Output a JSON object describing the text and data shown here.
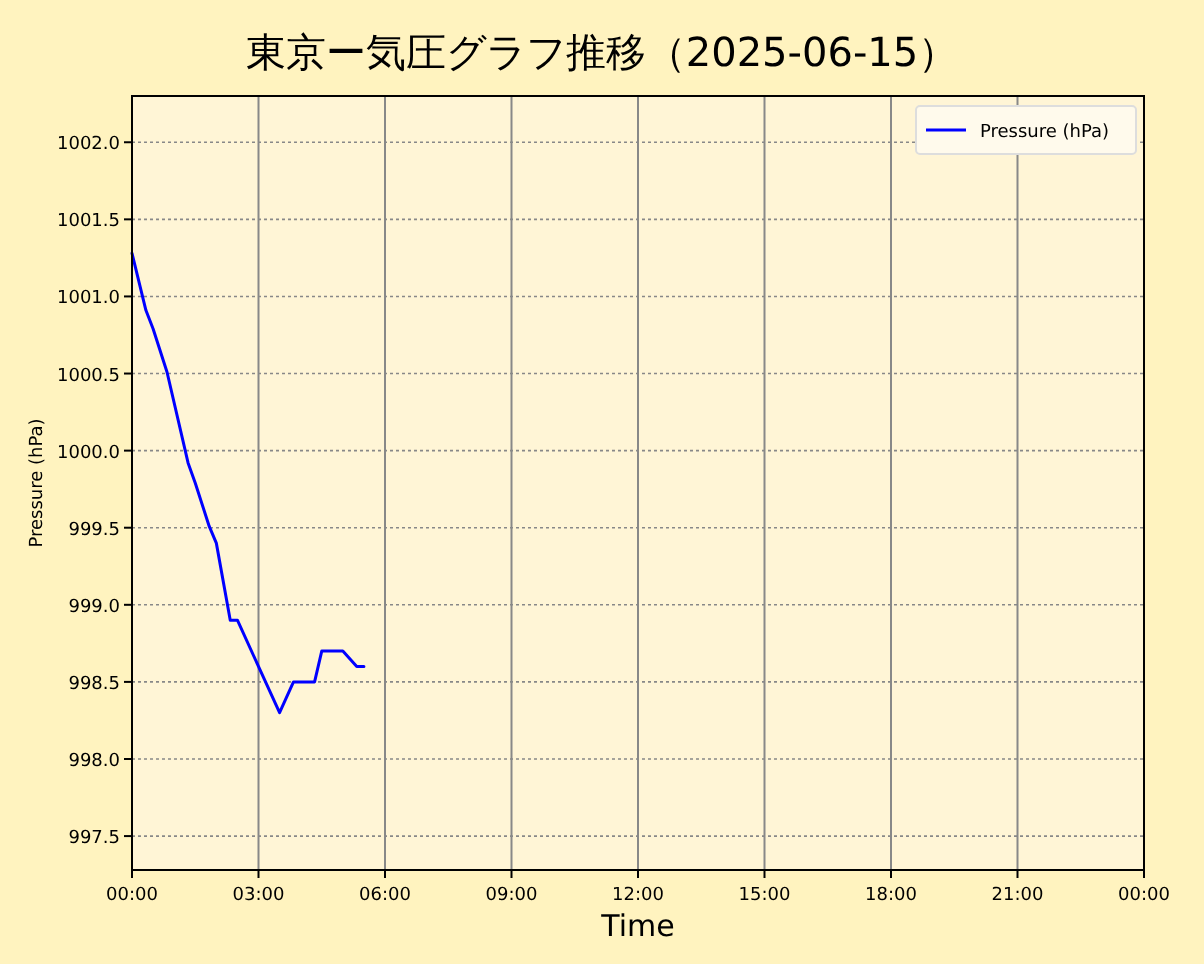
{
  "chart_data": {
    "type": "line",
    "title": "東京ー気圧グラフ推移（2025-06-15）",
    "xlabel": "Time",
    "ylabel": "Pressure (hPa)",
    "x": [
      0,
      0.33,
      0.5,
      0.83,
      1.33,
      1.5,
      1.83,
      2,
      2.33,
      2.5,
      3.5,
      3.83,
      4.33,
      4.5,
      5,
      5.33,
      5.5
    ],
    "series": [
      {
        "name": "Pressure (hPa)",
        "color": "#0000ff",
        "values": [
          1001.28,
          1000.91,
          1000.79,
          1000.51,
          999.92,
          999.79,
          999.51,
          999.4,
          998.9,
          998.9,
          998.3,
          998.5,
          998.5,
          998.7,
          998.7,
          998.6,
          998.6
        ]
      }
    ],
    "xlim": [
      0,
      24
    ],
    "xticks": [
      {
        "value": 0,
        "label": "00:00"
      },
      {
        "value": 3,
        "label": "03:00"
      },
      {
        "value": 6,
        "label": "06:00"
      },
      {
        "value": 9,
        "label": "09:00"
      },
      {
        "value": 12,
        "label": "12:00"
      },
      {
        "value": 15,
        "label": "15:00"
      },
      {
        "value": 18,
        "label": "18:00"
      },
      {
        "value": 21,
        "label": "21:00"
      },
      {
        "value": 24,
        "label": "00:00"
      }
    ],
    "ylim": [
      997.28,
      1002.3
    ],
    "yticks": [
      {
        "value": 997.5,
        "label": "997.5"
      },
      {
        "value": 998,
        "label": "998.0"
      },
      {
        "value": 998.5,
        "label": "998.5"
      },
      {
        "value": 999,
        "label": "999.0"
      },
      {
        "value": 999.5,
        "label": "999.5"
      },
      {
        "value": 1000,
        "label": "1000.0"
      },
      {
        "value": 1000.5,
        "label": "1000.5"
      },
      {
        "value": 1001,
        "label": "1001.0"
      },
      {
        "value": 1001.5,
        "label": "1001.5"
      },
      {
        "value": 1002,
        "label": "1002.0"
      }
    ],
    "grid": true,
    "legend": "top right",
    "marker": "none",
    "line_style": "solid"
  }
}
